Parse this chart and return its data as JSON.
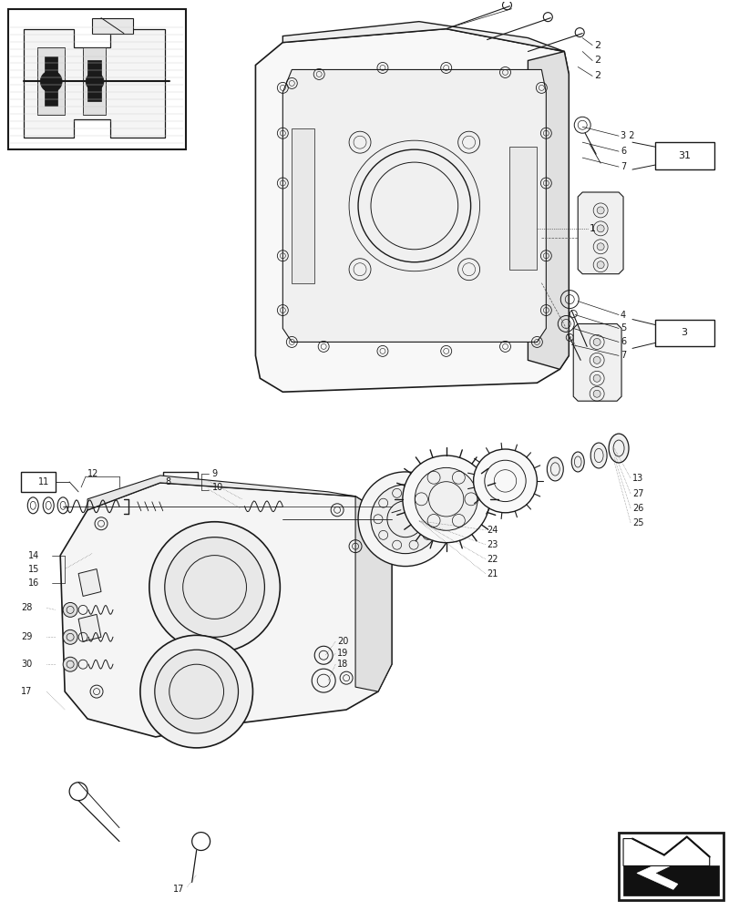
{
  "bg_color": "#ffffff",
  "lc": "#1a1a1a",
  "tc": "#1a1a1a",
  "figsize": [
    8.12,
    10.0
  ],
  "dpi": 100
}
